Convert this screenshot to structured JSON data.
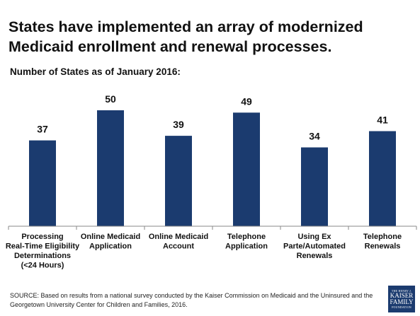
{
  "title": "States have implemented an array of modernized Medicaid enrollment and renewal processes.",
  "subtitle": "Number of States as of January 2016:",
  "source": "SOURCE: Based on results from a national survey conducted by the Kaiser Commission on Medicaid and the Uninsured and the Georgetown University Center for Children and Families, 2016.",
  "logo": {
    "line1": "THE HENRY J.",
    "line2": "KAISER",
    "line3": "FAMILY",
    "line4": "FOUNDATION"
  },
  "colors": {
    "bar": "#1b3b6f",
    "axis": "#8a8a8a"
  },
  "chart_data": {
    "type": "bar",
    "title": "Number of States as of January 2016:",
    "categories": [
      [
        "Processing",
        "Real-Time Eligibility",
        "Determinations",
        "(<24 Hours)"
      ],
      [
        "Online Medicaid",
        "Application"
      ],
      [
        "Online Medicaid",
        "Account"
      ],
      [
        "Telephone",
        "Application"
      ],
      [
        "Using Ex",
        "Parte/Automated",
        "Renewals"
      ],
      [
        "Telephone",
        "Renewals"
      ]
    ],
    "values": [
      37,
      50,
      39,
      49,
      34,
      41
    ],
    "ylim": [
      0,
      50
    ],
    "grid": false
  }
}
